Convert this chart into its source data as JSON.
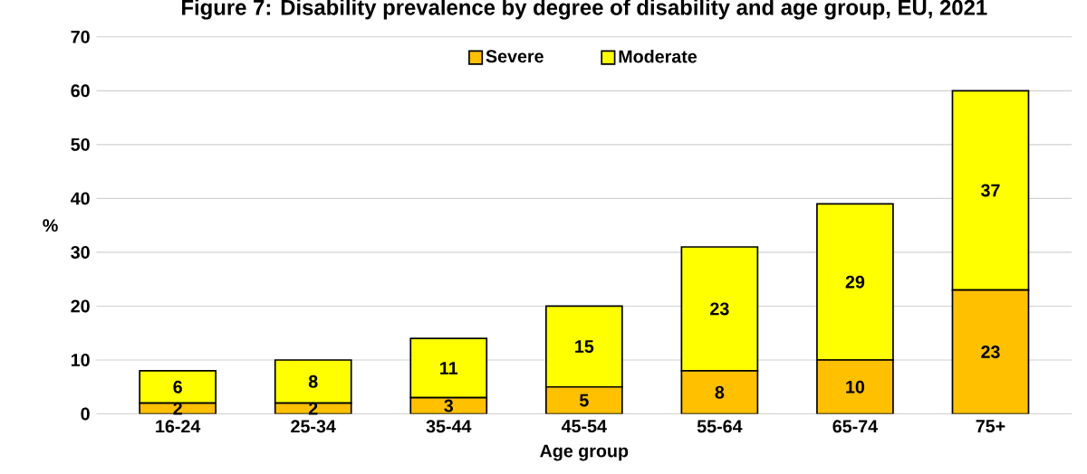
{
  "chart_data": {
    "type": "bar",
    "stacked": true,
    "title": "Figure 7: Disability prevalence by degree of disability and age group, EU, 2021",
    "xlabel": "Age group",
    "ylabel": "%",
    "categories": [
      "16-24",
      "25-34",
      "35-44",
      "45-54",
      "55-64",
      "65-74",
      "75+"
    ],
    "series": [
      {
        "name": "Severe",
        "color": "#ffc000",
        "values": [
          2,
          2,
          3,
          5,
          8,
          10,
          23
        ]
      },
      {
        "name": "Moderate",
        "color": "#ffff00",
        "values": [
          6,
          8,
          11,
          15,
          23,
          29,
          37
        ]
      }
    ],
    "ylim": [
      0,
      70
    ],
    "yticks": [
      0,
      10,
      20,
      30,
      40,
      50,
      60,
      70
    ],
    "grid": "y",
    "legend": "top",
    "data_labels": true
  }
}
